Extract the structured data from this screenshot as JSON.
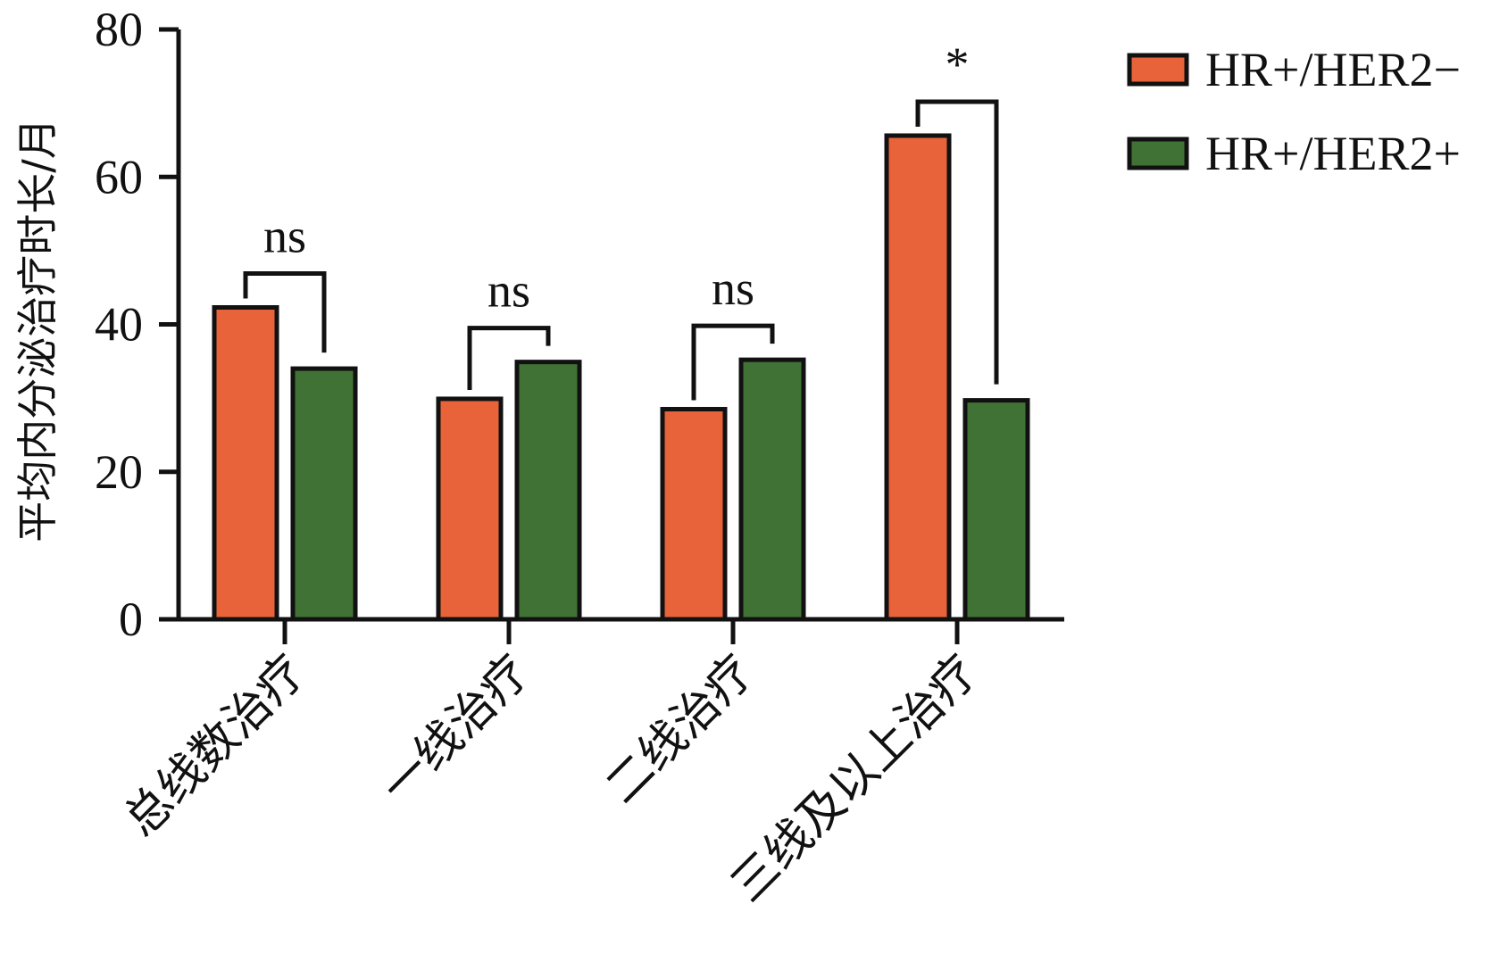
{
  "chart_data": {
    "type": "bar",
    "ylabel": "平均内分泌治疗时长/月",
    "ylim": [
      0,
      80
    ],
    "yticks": [
      0,
      20,
      40,
      60,
      80
    ],
    "categories": [
      "总线数治疗",
      "一线治疗",
      "二线治疗",
      "三线及以上治疗"
    ],
    "series": [
      {
        "name": "HR+/HER2−",
        "color": "#e8633a",
        "values": [
          42.3,
          29.9,
          28.5,
          65.6
        ]
      },
      {
        "name": "HR+/HER2+",
        "color": "#417235",
        "values": [
          34.0,
          34.9,
          35.2,
          29.7
        ]
      }
    ],
    "significance": [
      "ns",
      "ns",
      "ns",
      "*"
    ],
    "legend": "top-right",
    "grid": false
  }
}
